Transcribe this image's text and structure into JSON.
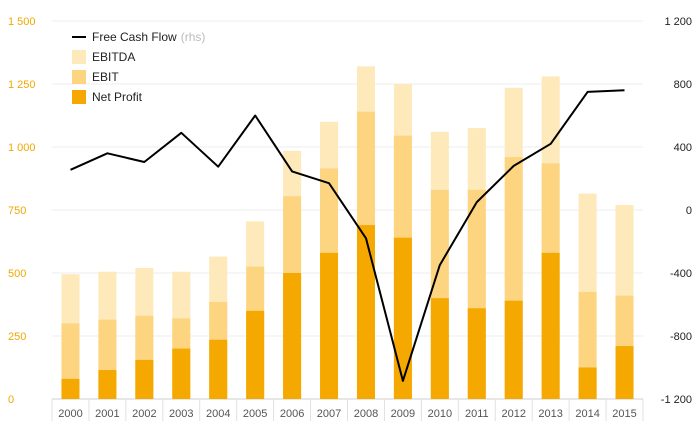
{
  "chart_data": {
    "type": "bar",
    "categories": [
      "2000",
      "2001",
      "2002",
      "2003",
      "2004",
      "2005",
      "2006",
      "2007",
      "2008",
      "2009",
      "2010",
      "2011",
      "2012",
      "2013",
      "2014",
      "2015"
    ],
    "series": [
      {
        "name": "EBITDA",
        "kind": "bar",
        "axis": "left",
        "color": "#fde9b9",
        "values": [
          495,
          505,
          520,
          505,
          565,
          705,
          985,
          1100,
          1320,
          1250,
          1060,
          1075,
          1235,
          1280,
          815,
          770
        ]
      },
      {
        "name": "EBIT",
        "kind": "bar",
        "axis": "left",
        "color": "#fdd580",
        "values": [
          300,
          315,
          330,
          320,
          385,
          525,
          805,
          915,
          1140,
          1045,
          830,
          830,
          960,
          935,
          425,
          410
        ]
      },
      {
        "name": "Net Profit",
        "kind": "bar",
        "axis": "left",
        "color": "#f5a800",
        "values": [
          80,
          115,
          155,
          200,
          235,
          350,
          500,
          580,
          690,
          640,
          400,
          360,
          390,
          580,
          125,
          210
        ]
      },
      {
        "name": "Free Cash Flow",
        "kind": "line",
        "axis": "right",
        "color": "#000000",
        "values": [
          255,
          360,
          305,
          490,
          275,
          600,
          245,
          170,
          -180,
          -1085,
          -350,
          50,
          280,
          420,
          750,
          760
        ]
      }
    ],
    "legend": {
      "items": [
        "Free Cash Flow",
        "EBITDA",
        "EBIT",
        "Net Profit"
      ],
      "line_note": "(rhs)",
      "position": "top-left"
    },
    "y_left": {
      "ylim": [
        0,
        1500
      ],
      "ticks": [
        0,
        250,
        500,
        750,
        1000,
        1250,
        1500
      ],
      "tick_labels": [
        "0",
        "250",
        "500",
        "750",
        "1 000",
        "1 250",
        "1 500"
      ],
      "color": "#f0a800"
    },
    "y_right": {
      "ylim": [
        -1200,
        1200
      ],
      "ticks": [
        -1200,
        -800,
        -400,
        0,
        400,
        800,
        1200
      ],
      "tick_labels": [
        "-1 200",
        "-800",
        "-400",
        "0",
        "400",
        "800",
        "1 200"
      ],
      "color": "#222222"
    },
    "grid": true,
    "title": "",
    "xlabel": "",
    "ylabel": ""
  }
}
